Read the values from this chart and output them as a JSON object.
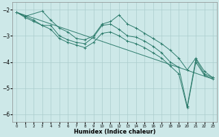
{
  "xlabel": "Humidex (Indice chaleur)",
  "xlim": [
    -0.5,
    23.5
  ],
  "ylim": [
    -6.3,
    -1.7
  ],
  "yticks": [
    -6,
    -5,
    -4,
    -3,
    -2
  ],
  "xticks": [
    0,
    1,
    2,
    3,
    4,
    5,
    6,
    7,
    8,
    9,
    10,
    11,
    12,
    13,
    14,
    15,
    16,
    17,
    18,
    19,
    20,
    21,
    22,
    23
  ],
  "bg_color": "#cde8e8",
  "grid_color": "#aacccc",
  "line_color": "#2a7a6a",
  "series": [
    {
      "x": [
        0,
        1,
        3,
        4,
        5,
        6,
        7,
        8,
        9,
        10,
        11,
        12,
        13,
        14,
        15,
        16,
        17,
        18,
        19,
        20,
        21,
        22,
        23
      ],
      "y": [
        -2.1,
        -2.25,
        -2.05,
        -2.4,
        -2.7,
        -2.85,
        -3.1,
        -3.15,
        -3.0,
        -2.55,
        -2.45,
        -2.2,
        -2.55,
        -2.7,
        -2.9,
        -3.1,
        -3.3,
        -3.55,
        -3.85,
        -4.3,
        -3.85,
        -4.35,
        -4.6
      ],
      "marker": true
    },
    {
      "x": [
        0,
        1,
        2,
        3,
        4,
        5,
        6,
        7,
        8,
        9,
        10,
        11,
        12,
        13,
        14,
        15,
        16,
        17,
        18,
        19,
        20,
        21,
        22,
        23
      ],
      "y": [
        -2.1,
        -2.25,
        -2.4,
        -2.6,
        -2.6,
        -3.0,
        -3.15,
        -3.25,
        -3.3,
        -3.05,
        -2.6,
        -2.55,
        -2.75,
        -3.0,
        -3.05,
        -3.2,
        -3.4,
        -3.65,
        -4.0,
        -4.2,
        -5.7,
        -3.9,
        -4.45,
        -4.6
      ],
      "marker": true
    },
    {
      "x": [
        0,
        1,
        2,
        3,
        4,
        5,
        6,
        7,
        8,
        9,
        10,
        11,
        12,
        13,
        14,
        15,
        16,
        17,
        18,
        19,
        20,
        21,
        22,
        23
      ],
      "y": [
        -2.1,
        -2.3,
        -2.45,
        -2.6,
        -2.75,
        -3.1,
        -3.25,
        -3.35,
        -3.45,
        -3.25,
        -2.9,
        -2.85,
        -3.0,
        -3.2,
        -3.3,
        -3.45,
        -3.65,
        -3.85,
        -4.15,
        -4.45,
        -5.75,
        -4.0,
        -4.5,
        -4.65
      ],
      "marker": true
    },
    {
      "x": [
        0,
        23
      ],
      "y": [
        -2.1,
        -4.65
      ],
      "marker": false
    }
  ]
}
